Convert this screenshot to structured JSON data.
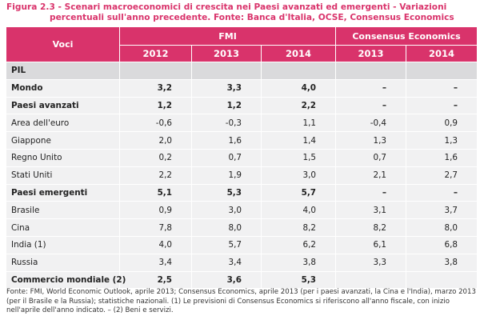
{
  "caption": {
    "line1": "Figura 2.3 - Scenari macroeconomici di crescita nei Paesi avanzati ed emergenti - Variazioni",
    "line2": "percentuali sull'anno precedente. Fonte: Banca d'Italia, OCSE, Consensus Economics"
  },
  "table": {
    "header": {
      "voci": "Voci",
      "group_fmi": "FMI",
      "group_consensus": "Consensus Economics",
      "years": [
        "2012",
        "2013",
        "2014",
        "2013",
        "2014"
      ]
    },
    "section_pil": "PIL",
    "rows": [
      {
        "label": "Mondo",
        "values": [
          "3,2",
          "3,3",
          "4,0",
          "–",
          "–"
        ]
      },
      {
        "label": "Paesi avanzati",
        "values": [
          "1,2",
          "1,2",
          "2,2",
          "–",
          "–"
        ]
      },
      {
        "label": "Area dell'euro",
        "values": [
          "-0,6",
          "-0,3",
          "1,1",
          "-0,4",
          "0,9"
        ]
      },
      {
        "label": "Giappone",
        "values": [
          "2,0",
          "1,6",
          "1,4",
          "1,3",
          "1,3"
        ]
      },
      {
        "label": "Regno Unito",
        "values": [
          "0,2",
          "0,7",
          "1,5",
          "0,7",
          "1,6"
        ]
      },
      {
        "label": "Stati Uniti",
        "values": [
          "2,2",
          "1,9",
          "3,0",
          "2,1",
          "2,7"
        ]
      },
      {
        "label": "Paesi emergenti",
        "values": [
          "5,1",
          "5,3",
          "5,7",
          "–",
          "–"
        ]
      },
      {
        "label": "Brasile",
        "values": [
          "0,9",
          "3,0",
          "4,0",
          "3,1",
          "3,7"
        ]
      },
      {
        "label": "Cina",
        "values": [
          "7,8",
          "8,0",
          "8,2",
          "8,2",
          "8,0"
        ]
      },
      {
        "label": "India (1)",
        "values": [
          "4,0",
          "5,7",
          "6,2",
          "6,1",
          "6,8"
        ]
      },
      {
        "label": "Russia",
        "values": [
          "3,4",
          "3,4",
          "3,8",
          "3,3",
          "3,8"
        ]
      },
      {
        "label": "Commercio mondiale (2)",
        "values": [
          "2,5",
          "3,6",
          "5,3",
          "",
          ""
        ]
      }
    ]
  },
  "footnote": "Fonte: FMI, World Economic Outlook, aprile 2013; Consensus Economics, aprile 2013 (per i paesi avanzati, la Cina e l'India), marzo 2013 (per il Brasile e la Russia); statistiche nazionali. (1) Le previsioni di Consensus Economics si riferiscono all'anno fiscale, con inizio nell'aprile dell'anno indicato. – (2) Beni e servizi."
}
